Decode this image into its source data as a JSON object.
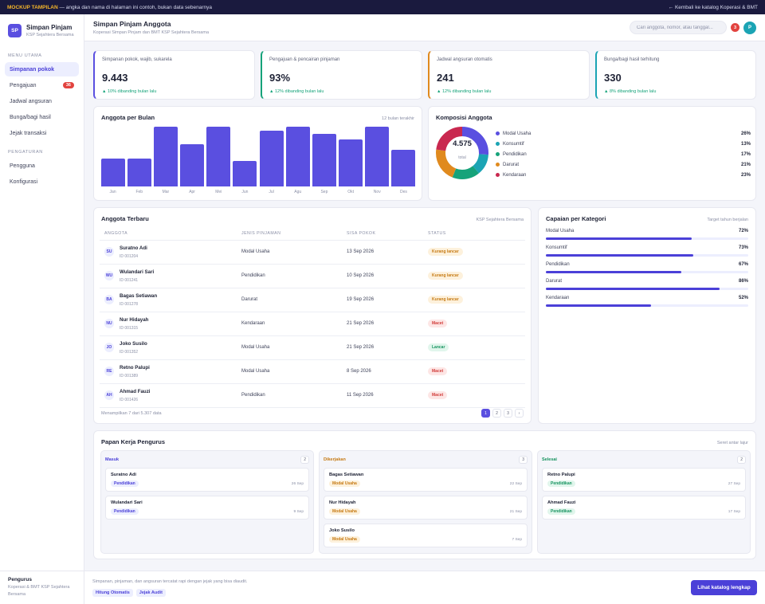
{
  "banner": {
    "tag": "MOCKUP TAMPILAN",
    "text": " — angka dan nama di halaman ini contoh, bukan data sebenarnya",
    "back_link": "← Kembali ke katalog Koperasi & BMT"
  },
  "brand": {
    "logo": "SP",
    "title": "Simpan Pinjam",
    "subtitle": "KSP Sejahtera Bersama"
  },
  "sidebar": {
    "section_main": "MENU UTAMA",
    "items": [
      {
        "label": "Simpanan pokok",
        "active": true
      },
      {
        "label": "Pengajuan",
        "badge": "36"
      },
      {
        "label": "Jadwal angsuran"
      },
      {
        "label": "Bunga/bagi hasil"
      },
      {
        "label": "Jejak transaksi"
      }
    ],
    "section_settings": "PENGATURAN",
    "settings_items": [
      {
        "label": "Pengguna"
      },
      {
        "label": "Konfigurasi"
      }
    ],
    "footer_title": "Pengurus",
    "footer_sub": "Koperasi & BMT KSP Sejahtera Bersama"
  },
  "header": {
    "title": "Simpan Pinjam Anggota",
    "subtitle": "Koperasi Simpan Pinjam dan BMT KSP Sejahtera Bersama",
    "search_placeholder": "Cari anggota, nomor, atau tanggal...",
    "notif_count": "3",
    "avatar": "P"
  },
  "kpis": [
    {
      "label": "Simpanan pokok, wajib, sukarela",
      "value": "9.443",
      "trend": "▲ 10% dibanding bulan lalu",
      "accent": "#5a4fe0"
    },
    {
      "label": "Pengajuan & pencairan pinjaman",
      "value": "93%",
      "trend": "▲ 12% dibanding bulan lalu",
      "accent": "#16a37a"
    },
    {
      "label": "Jadwal angsuran otomatis",
      "value": "241",
      "trend": "▲ 12% dibanding bulan lalu",
      "accent": "#e08a1e"
    },
    {
      "label": "Bunga/bagi hasil terhitung",
      "value": "330",
      "trend": "▲ 8% dibanding bulan lalu",
      "accent": "#1ba4b4"
    }
  ],
  "bar_card": {
    "title": "Anggota per Bulan",
    "note": "12 bulan terakhir"
  },
  "chart_data": {
    "type": "bar",
    "categories": [
      "Jan",
      "Feb",
      "Mar",
      "Apr",
      "Mei",
      "Jun",
      "Jul",
      "Agu",
      "Sep",
      "Okt",
      "Nov",
      "Des"
    ],
    "values": [
      46,
      46,
      100,
      71,
      100,
      42,
      93,
      100,
      88,
      78,
      100,
      61
    ],
    "ylim": [
      0,
      100
    ],
    "grid": false,
    "color": "#5a4fe0"
  },
  "donut_card": {
    "title": "Komposisi Anggota",
    "total": "4.575",
    "total_label": "total",
    "segments": [
      {
        "name": "Modal Usaha",
        "pct": 26,
        "label": "26%",
        "color": "#5a4fe0"
      },
      {
        "name": "Konsumtif",
        "pct": 13,
        "label": "13%",
        "color": "#1ba4b4"
      },
      {
        "name": "Pendidikan",
        "pct": 17,
        "label": "17%",
        "color": "#16a37a"
      },
      {
        "name": "Darurat",
        "pct": 21,
        "label": "21%",
        "color": "#e08a1e"
      },
      {
        "name": "Kendaraan",
        "pct": 23,
        "label": "23%",
        "color": "#c9284f"
      }
    ]
  },
  "table_card": {
    "title": "Anggota Terbaru",
    "note": "KSP Sejahtera Bersama",
    "columns": [
      "ANGGOTA",
      "JENIS PINJAMAN",
      "SISA POKOK",
      "STATUS"
    ],
    "rows": [
      {
        "initials": "SU",
        "name": "Suratno Adi",
        "id": "ID 001204",
        "type": "Modal Usaha",
        "date": "13 Sep 2026",
        "status": "Kurang lancar",
        "tone": "orange"
      },
      {
        "initials": "WU",
        "name": "Wulandari Sari",
        "id": "ID 001241",
        "type": "Pendidikan",
        "date": "10 Sep 2026",
        "status": "Kurang lancar",
        "tone": "orange"
      },
      {
        "initials": "BA",
        "name": "Bagas Setiawan",
        "id": "ID 001278",
        "type": "Darurat",
        "date": "19 Sep 2026",
        "status": "Kurang lancar",
        "tone": "orange"
      },
      {
        "initials": "NU",
        "name": "Nur Hidayah",
        "id": "ID 001315",
        "type": "Kendaraan",
        "date": "21 Sep 2026",
        "status": "Macet",
        "tone": "red"
      },
      {
        "initials": "JO",
        "name": "Joko Susilo",
        "id": "ID 001352",
        "type": "Modal Usaha",
        "date": "21 Sep 2026",
        "status": "Lancar",
        "tone": "green"
      },
      {
        "initials": "RE",
        "name": "Retno Palupi",
        "id": "ID 001389",
        "type": "Modal Usaha",
        "date": "8 Sep 2026",
        "status": "Macet",
        "tone": "red"
      },
      {
        "initials": "AH",
        "name": "Ahmad Fauzi",
        "id": "ID 001426",
        "type": "Pendidikan",
        "date": "11 Sep 2026",
        "status": "Macet",
        "tone": "red"
      }
    ],
    "footer": "Menampilkan 7 dari 5.307 data",
    "pages": [
      "1",
      "2",
      "3",
      "›"
    ]
  },
  "progress_card": {
    "title": "Capaian per Kategori",
    "note": "Target tahun berjalan",
    "items": [
      {
        "label": "Modal Usaha",
        "pct": 72,
        "pct_label": "72%"
      },
      {
        "label": "Konsumtif",
        "pct": 73,
        "pct_label": "73%"
      },
      {
        "label": "Pendidikan",
        "pct": 67,
        "pct_label": "67%"
      },
      {
        "label": "Darurat",
        "pct": 86,
        "pct_label": "86%"
      },
      {
        "label": "Kendaraan",
        "pct": 52,
        "pct_label": "52%"
      }
    ]
  },
  "board": {
    "title": "Papan Kerja Pengurus",
    "note": "Seret antar lajur",
    "columns": [
      {
        "title": "Masuk",
        "count": "2",
        "color": "#4b40d8",
        "cards": [
          {
            "name": "Suratno Adi",
            "tag": "Pendidikan",
            "tone": "blue",
            "date": "26 Sep"
          },
          {
            "name": "Wulandari Sari",
            "tag": "Pendidikan",
            "tone": "blue",
            "date": "9 Sep"
          }
        ]
      },
      {
        "title": "Dikerjakan",
        "count": "3",
        "color": "#c67a14",
        "cards": [
          {
            "name": "Bagas Setiawan",
            "tag": "Modal Usaha",
            "tone": "orange",
            "date": "22 Sep"
          },
          {
            "name": "Nur Hidayah",
            "tag": "Modal Usaha",
            "tone": "orange",
            "date": "21 Sep"
          },
          {
            "name": "Joko Susilo",
            "tag": "Modal Usaha",
            "tone": "orange",
            "date": "7 Sep"
          }
        ]
      },
      {
        "title": "Selesai",
        "count": "2",
        "color": "#17935f",
        "cards": [
          {
            "name": "Retno Palupi",
            "tag": "Pendidikan",
            "tone": "green",
            "date": "27 Sep"
          },
          {
            "name": "Ahmad Fauzi",
            "tag": "Pendidikan",
            "tone": "green",
            "date": "17 Sep"
          }
        ]
      }
    ]
  },
  "footer": {
    "note": "Simpanan, pinjaman, dan angsuran tercatat rapi dengan jejak yang bisa diaudit.",
    "chips": [
      "Hitung Otomatis",
      "Jejak Audit"
    ],
    "cta": "Lihat katalog lengkap"
  }
}
